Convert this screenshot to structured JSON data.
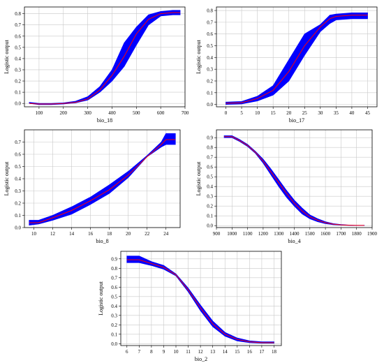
{
  "colors": {
    "band": "#0000ff",
    "mean_line": "#ff0000",
    "grid": "#c8c8c8",
    "frame": "#000000"
  },
  "chart_data": [
    {
      "type": "line",
      "xlabel": "bio_18",
      "ylabel": "Logistic output",
      "xlim": [
        40,
        700
      ],
      "ylim": [
        -0.03,
        0.86
      ],
      "xticks": [
        100,
        200,
        300,
        400,
        500,
        600,
        700
      ],
      "yticks": [
        0.0,
        0.1,
        0.2,
        0.3,
        0.4,
        0.5,
        0.6,
        0.7,
        0.8
      ],
      "grid": true,
      "x": [
        60,
        100,
        150,
        200,
        250,
        300,
        350,
        400,
        450,
        500,
        550,
        600,
        650,
        680
      ],
      "mean": [
        0.0,
        -0.005,
        -0.005,
        0.0,
        0.01,
        0.04,
        0.12,
        0.25,
        0.42,
        0.62,
        0.75,
        0.8,
        0.81,
        0.81
      ],
      "lower": [
        0.0,
        -0.01,
        -0.01,
        -0.005,
        0.005,
        0.03,
        0.1,
        0.2,
        0.33,
        0.52,
        0.7,
        0.78,
        0.79,
        0.79
      ],
      "upper": [
        0.01,
        0.0,
        0.0,
        0.005,
        0.02,
        0.06,
        0.15,
        0.3,
        0.54,
        0.68,
        0.79,
        0.82,
        0.83,
        0.83
      ]
    },
    {
      "type": "line",
      "xlabel": "bio_17",
      "ylabel": "Logistic output",
      "xlim": [
        -3,
        48
      ],
      "ylim": [
        -0.02,
        0.83
      ],
      "xticks": [
        0,
        5,
        10,
        15,
        20,
        25,
        30,
        35,
        40,
        45
      ],
      "yticks": [
        0.0,
        0.1,
        0.2,
        0.3,
        0.4,
        0.5,
        0.6,
        0.7,
        0.8
      ],
      "grid": true,
      "x": [
        0,
        5,
        10,
        15,
        20,
        25,
        30,
        33,
        35,
        40,
        45
      ],
      "mean": [
        0.01,
        0.015,
        0.05,
        0.12,
        0.28,
        0.5,
        0.66,
        0.73,
        0.75,
        0.76,
        0.76
      ],
      "lower": [
        0.0,
        0.005,
        0.03,
        0.08,
        0.2,
        0.42,
        0.62,
        0.69,
        0.72,
        0.73,
        0.73
      ],
      "upper": [
        0.02,
        0.025,
        0.07,
        0.16,
        0.38,
        0.6,
        0.68,
        0.76,
        0.77,
        0.78,
        0.78
      ]
    },
    {
      "type": "line",
      "xlabel": "bio_8",
      "ylabel": "Logistic output",
      "xlim": [
        9,
        25.5
      ],
      "ylim": [
        0.0,
        0.8
      ],
      "xticks": [
        10,
        12,
        14,
        16,
        18,
        20,
        22,
        24
      ],
      "yticks": [
        0.0,
        0.1,
        0.2,
        0.3,
        0.4,
        0.5,
        0.6,
        0.7
      ],
      "grid": true,
      "x": [
        9.5,
        10.5,
        12,
        14,
        16,
        18,
        20,
        22,
        23.5,
        24,
        25
      ],
      "mean": [
        0.04,
        0.04,
        0.08,
        0.14,
        0.22,
        0.31,
        0.43,
        0.58,
        0.68,
        0.72,
        0.72
      ],
      "lower": [
        0.02,
        0.03,
        0.06,
        0.11,
        0.19,
        0.28,
        0.41,
        0.58,
        0.66,
        0.68,
        0.68
      ],
      "upper": [
        0.06,
        0.06,
        0.1,
        0.17,
        0.25,
        0.35,
        0.46,
        0.59,
        0.7,
        0.77,
        0.77
      ]
    },
    {
      "type": "line",
      "xlabel": "bio_4",
      "ylabel": "Logistic output",
      "xlim": [
        900,
        1900
      ],
      "ylim": [
        -0.02,
        0.98
      ],
      "xticks": [
        900,
        1000,
        1100,
        1200,
        1300,
        1400,
        1500,
        1600,
        1700,
        1800,
        1900
      ],
      "yticks": [
        0.0,
        0.1,
        0.2,
        0.3,
        0.4,
        0.5,
        0.6,
        0.7,
        0.8,
        0.9
      ],
      "grid": true,
      "x": [
        950,
        1000,
        1050,
        1100,
        1150,
        1200,
        1250,
        1300,
        1350,
        1400,
        1450,
        1500,
        1550,
        1600,
        1650,
        1700,
        1750,
        1800,
        1850
      ],
      "mean": [
        0.91,
        0.91,
        0.87,
        0.82,
        0.75,
        0.66,
        0.55,
        0.44,
        0.33,
        0.23,
        0.15,
        0.09,
        0.055,
        0.03,
        0.015,
        0.008,
        0.004,
        0.002,
        0.002
      ],
      "lower": [
        0.9,
        0.9,
        0.86,
        0.81,
        0.74,
        0.64,
        0.52,
        0.4,
        0.29,
        0.2,
        0.12,
        0.07,
        0.04,
        0.02,
        0.01,
        0.005,
        0.002,
        0.001,
        0.001
      ],
      "upper": [
        0.92,
        0.92,
        0.88,
        0.83,
        0.76,
        0.68,
        0.58,
        0.47,
        0.36,
        0.26,
        0.18,
        0.11,
        0.07,
        0.04,
        0.02,
        0.011,
        0.006,
        0.003,
        0.003
      ]
    },
    {
      "type": "line",
      "xlabel": "bio_2",
      "ylabel": "Logistic output",
      "xlim": [
        5.5,
        18.6
      ],
      "ylim": [
        -0.02,
        0.98
      ],
      "xticks": [
        6,
        7,
        8,
        9,
        10,
        11,
        12,
        13,
        14,
        15,
        16,
        17,
        18
      ],
      "yticks": [
        0.0,
        0.1,
        0.2,
        0.3,
        0.4,
        0.5,
        0.6,
        0.7,
        0.8,
        0.9
      ],
      "grid": true,
      "x": [
        6,
        7,
        8,
        9,
        10,
        11,
        12,
        13,
        14,
        15,
        16,
        17,
        18
      ],
      "mean": [
        0.89,
        0.89,
        0.85,
        0.81,
        0.73,
        0.57,
        0.38,
        0.21,
        0.1,
        0.045,
        0.02,
        0.01,
        0.01
      ],
      "lower": [
        0.86,
        0.86,
        0.83,
        0.79,
        0.72,
        0.55,
        0.35,
        0.18,
        0.08,
        0.03,
        0.01,
        0.005,
        0.005
      ],
      "upper": [
        0.93,
        0.93,
        0.87,
        0.83,
        0.74,
        0.59,
        0.41,
        0.24,
        0.12,
        0.06,
        0.03,
        0.02,
        0.02
      ]
    }
  ]
}
